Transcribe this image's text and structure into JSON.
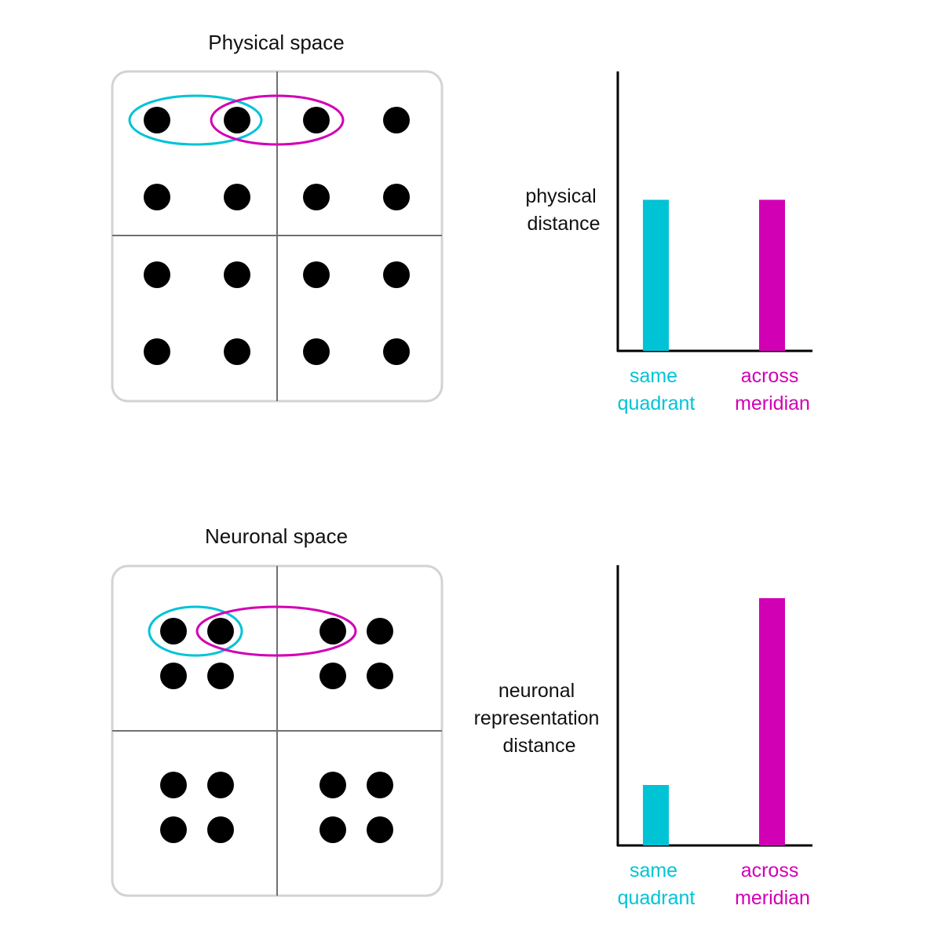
{
  "colors": {
    "cyan": "#00c3d6",
    "magenta": "#d200b4",
    "dot": "#000000",
    "frame": "#d3d3d3",
    "divider": "#707070",
    "axis": "#000000"
  },
  "panels": [
    {
      "title": "Physical space",
      "layout": "uniform grid 4x4",
      "highlight_pairs": [
        {
          "color_key": "cyan",
          "label": "same quadrant"
        },
        {
          "color_key": "magenta",
          "label": "across meridian"
        }
      ],
      "chart_data": {
        "type": "bar",
        "ylabel_lines": [
          "physical",
          "distance"
        ],
        "categories": [
          {
            "lines": [
              "same",
              "quadrant"
            ],
            "color_key": "cyan"
          },
          {
            "lines": [
              "across",
              "meridian"
            ],
            "color_key": "magenta"
          }
        ],
        "values": [
          0.55,
          0.55
        ],
        "ylim": [
          0,
          1
        ],
        "grid": false,
        "tick_labels": false
      }
    },
    {
      "title": "Neuronal space",
      "layout": "dots clustered within each quadrant",
      "highlight_pairs": [
        {
          "color_key": "cyan",
          "label": "same quadrant"
        },
        {
          "color_key": "magenta",
          "label": "across meridian"
        }
      ],
      "chart_data": {
        "type": "bar",
        "ylabel_lines": [
          "neuronal",
          "representation",
          "distance"
        ],
        "categories": [
          {
            "lines": [
              "same",
              "quadrant"
            ],
            "color_key": "cyan"
          },
          {
            "lines": [
              "across",
              "meridian"
            ],
            "color_key": "magenta"
          }
        ],
        "values": [
          0.22,
          0.9
        ],
        "ylim": [
          0,
          1
        ],
        "grid": false,
        "tick_labels": false
      }
    }
  ]
}
